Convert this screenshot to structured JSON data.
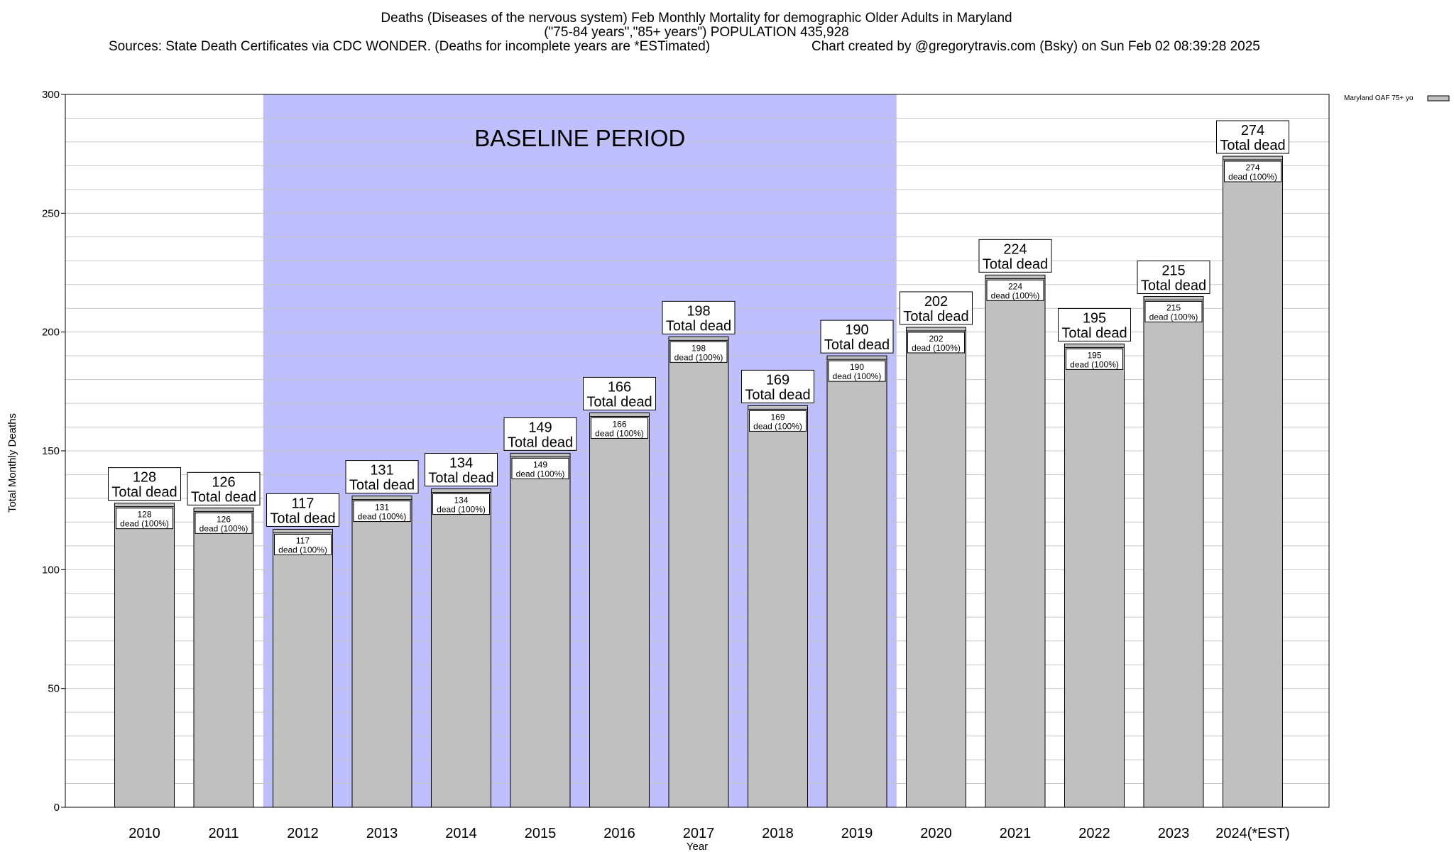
{
  "header": {
    "title_line1": "Deaths (Diseases of the nervous system) Feb Monthly Mortality for demographic Older Adults in Maryland",
    "title_line2": "(\"75-84 years\",\"85+ years\") POPULATION 435,928",
    "sources": "Sources: State Death Certificates via CDC WONDER. (Deaths for incomplete years are *ESTimated)",
    "credit": "Chart created by @gregorytravis.com (Bsky) on Sun Feb 02 08:39:28 2025"
  },
  "chart_data": {
    "type": "bar",
    "categories": [
      "2010",
      "2011",
      "2012",
      "2013",
      "2014",
      "2015",
      "2016",
      "2017",
      "2018",
      "2019",
      "2020",
      "2021",
      "2022",
      "2023",
      "2024(*EST)"
    ],
    "series": [
      {
        "name": "Maryland OAF 75+ yo",
        "values": [
          128,
          126,
          117,
          131,
          134,
          149,
          166,
          198,
          169,
          190,
          202,
          224,
          195,
          215,
          274
        ],
        "color": "#c0c0c0"
      }
    ],
    "total_label_suffix": "Total dead",
    "inner_label_suffix": "dead (100%)",
    "xlabel": "Year",
    "ylabel": "Total Monthly Deaths",
    "ylim": [
      0,
      300
    ],
    "y_ticks": [
      0,
      50,
      100,
      150,
      200,
      250,
      300
    ],
    "y_minor_step": 10,
    "grid": true,
    "legend_position": "top-right",
    "baseline": {
      "label": "BASELINE PERIOD",
      "start": "2012",
      "end": "2019",
      "color": "#bfbffd"
    }
  }
}
